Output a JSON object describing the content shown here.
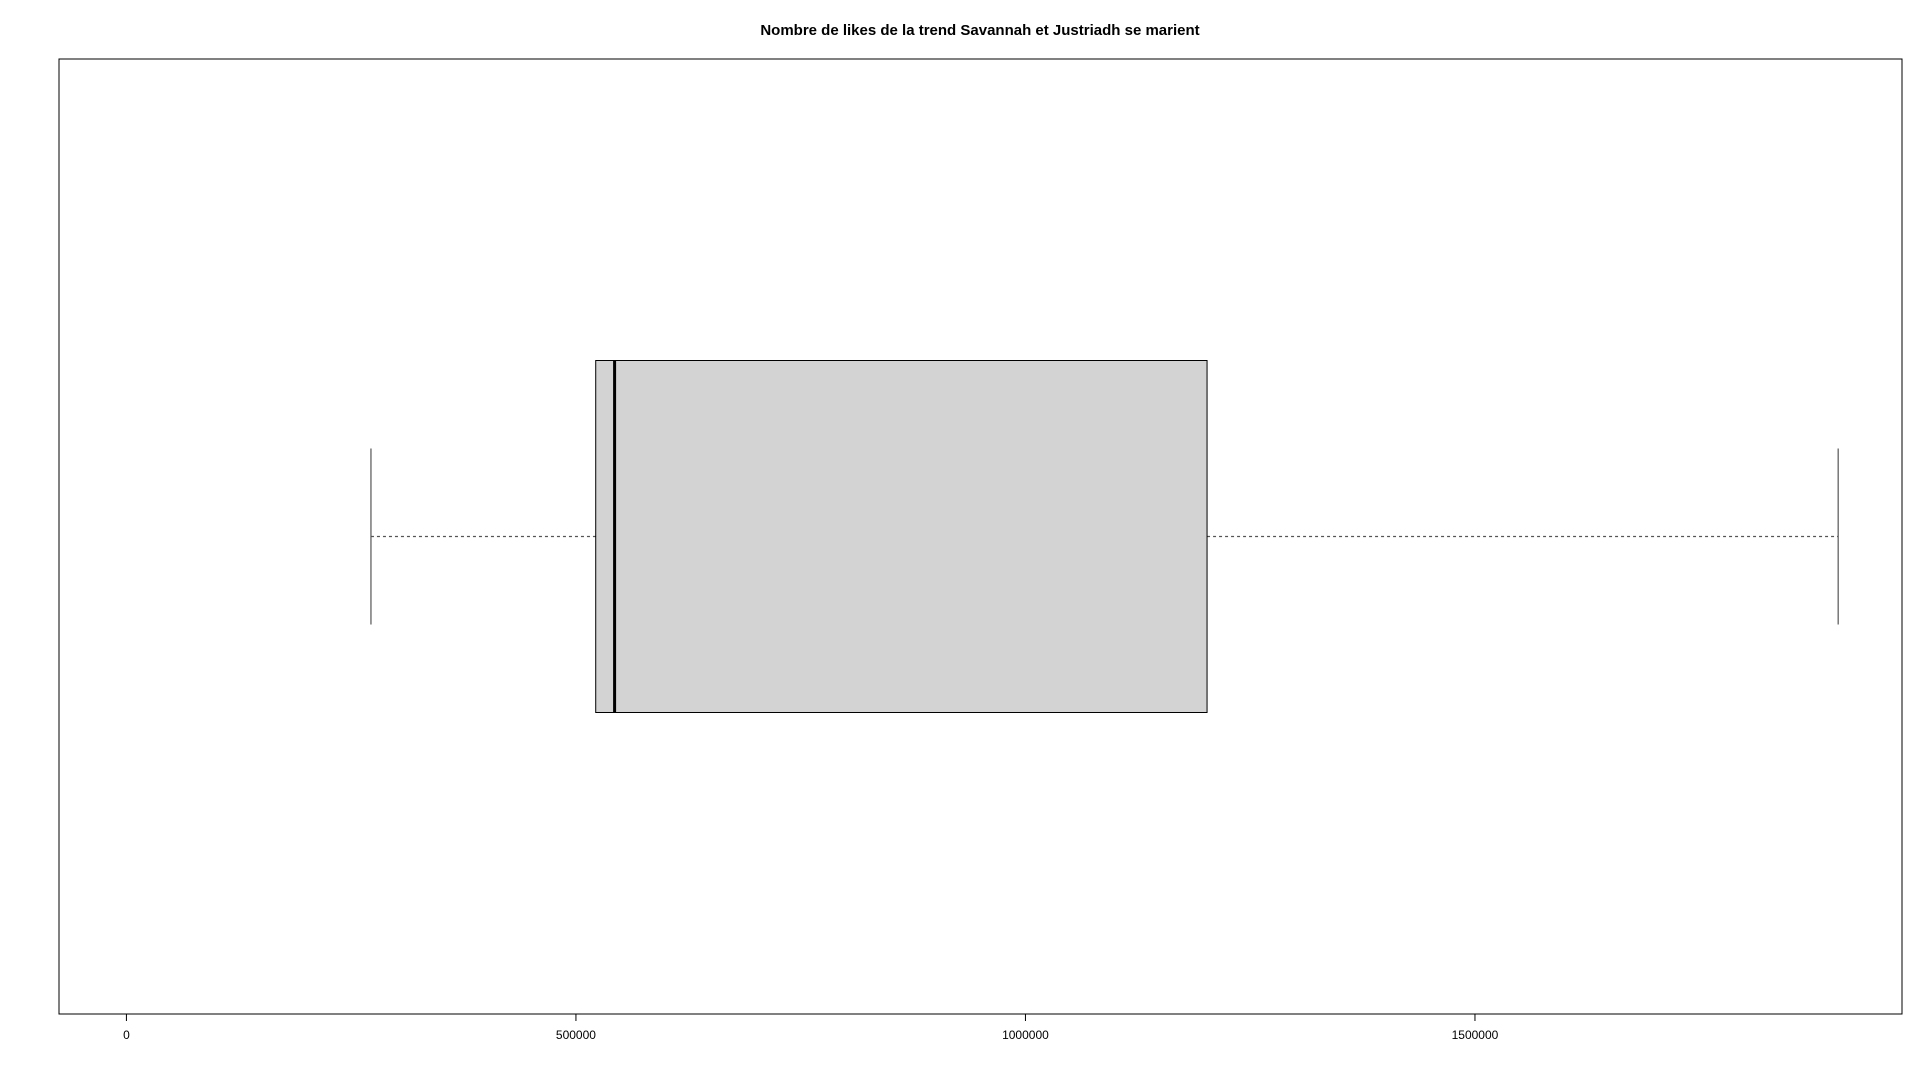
{
  "chart_data": {
    "type": "boxplot",
    "orientation": "horizontal",
    "title": "Nombre de likes de la trend Savannah et Justriadh se marient",
    "xlabel": "",
    "ylabel": "",
    "xlim": [
      -75000,
      1975000
    ],
    "x_ticks": [
      0,
      500000,
      1000000,
      1500000
    ],
    "x_tick_labels": [
      "0",
      "500000",
      "1000000",
      "1500000"
    ],
    "grid": false,
    "legend": "none",
    "colors": {
      "box_fill": "#d3d3d3",
      "box_stroke": "#000000",
      "whisker": "#555555",
      "median": "#000000"
    },
    "series": [
      {
        "whisker_low": 272000,
        "q1": 522000,
        "median": 543000,
        "q3": 1202000,
        "whisker_high": 1904000
      }
    ]
  }
}
